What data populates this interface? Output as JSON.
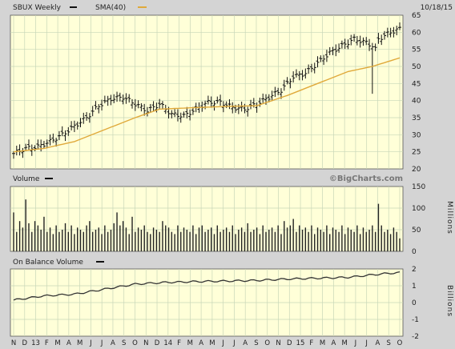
{
  "header": {
    "date": "10/18/15"
  },
  "chart_data": [
    {
      "type": "ohlc",
      "panel": "price",
      "title": "SBUX Weekly",
      "overlay_label": "SMA(40)",
      "colors": {
        "price": "#111111",
        "sma": "#e0a93a",
        "bg": "#ffffd8",
        "grid": "#c8d6b8"
      },
      "ylim": [
        20,
        65
      ],
      "yticks": [
        20,
        25,
        30,
        35,
        40,
        45,
        50,
        55,
        60,
        65
      ],
      "x_labels": [
        "N",
        "D",
        "13",
        "F",
        "M",
        "A",
        "M",
        "J",
        "J",
        "A",
        "S",
        "O",
        "N",
        "D",
        "14",
        "F",
        "M",
        "A",
        "M",
        "J",
        "J",
        "A",
        "S",
        "O",
        "N",
        "D",
        "15",
        "F",
        "M",
        "A",
        "M",
        "J",
        "J",
        "A",
        "S",
        "O"
      ],
      "close_anchors": [
        [
          0,
          24.5
        ],
        [
          4,
          26
        ],
        [
          8,
          26.5
        ],
        [
          12,
          28
        ],
        [
          16,
          30
        ],
        [
          20,
          32.5
        ],
        [
          24,
          35
        ],
        [
          28,
          38.5
        ],
        [
          32,
          40.5
        ],
        [
          36,
          41
        ],
        [
          40,
          39
        ],
        [
          44,
          37
        ],
        [
          48,
          39
        ],
        [
          52,
          36
        ],
        [
          56,
          35.5
        ],
        [
          60,
          37.5
        ],
        [
          64,
          39.5
        ],
        [
          68,
          39.5
        ],
        [
          72,
          38
        ],
        [
          76,
          37.5
        ],
        [
          80,
          39
        ],
        [
          84,
          41
        ],
        [
          88,
          43
        ],
        [
          92,
          47
        ],
        [
          96,
          48
        ],
        [
          100,
          51
        ],
        [
          104,
          54
        ],
        [
          108,
          56
        ],
        [
          112,
          58
        ],
        [
          116,
          57
        ],
        [
          118,
          56
        ],
        [
          119,
          55
        ],
        [
          120,
          58
        ],
        [
          124,
          60
        ],
        [
          127,
          61
        ]
      ],
      "sma_anchors": [
        [
          0,
          25
        ],
        [
          10,
          26
        ],
        [
          20,
          28
        ],
        [
          30,
          31.5
        ],
        [
          40,
          35
        ],
        [
          48,
          37.5
        ],
        [
          56,
          37.8
        ],
        [
          70,
          38.3
        ],
        [
          80,
          38.5
        ],
        [
          90,
          41.5
        ],
        [
          100,
          45
        ],
        [
          110,
          48.5
        ],
        [
          118,
          50
        ],
        [
          127,
          52.5
        ]
      ],
      "spike_low": {
        "week": 118,
        "value": 42
      }
    },
    {
      "type": "bar",
      "panel": "volume",
      "title": "Volume",
      "watermark": "©BigCharts.com",
      "unit_label": "Millions",
      "ylim": [
        0,
        150
      ],
      "yticks": [
        0,
        50,
        100,
        150
      ],
      "values": [
        90,
        45,
        70,
        55,
        120,
        65,
        45,
        70,
        60,
        50,
        80,
        45,
        55,
        40,
        60,
        45,
        50,
        65,
        45,
        60,
        40,
        55,
        50,
        45,
        60,
        70,
        45,
        50,
        55,
        40,
        60,
        45,
        50,
        65,
        90,
        60,
        70,
        55,
        40,
        80,
        45,
        55,
        50,
        60,
        45,
        40,
        55,
        50,
        45,
        70,
        60,
        55,
        45,
        40,
        60,
        45,
        55,
        50,
        45,
        60,
        40,
        55,
        60,
        45,
        50,
        55,
        40,
        60,
        45,
        50,
        55,
        45,
        60,
        40,
        50,
        55,
        45,
        65,
        45,
        50,
        55,
        40,
        60,
        45,
        50,
        55,
        45,
        60,
        40,
        70,
        55,
        60,
        75,
        45,
        60,
        50,
        55,
        45,
        60,
        40,
        55,
        50,
        45,
        60,
        40,
        55,
        50,
        45,
        60,
        40,
        55,
        50,
        45,
        60,
        40,
        55,
        45,
        50,
        60,
        45,
        110,
        60,
        45,
        50,
        40,
        55,
        45,
        30
      ]
    },
    {
      "type": "line",
      "panel": "obv",
      "title": "On Balance Volume",
      "unit_label": "Billions",
      "ylim": [
        -2,
        2
      ],
      "yticks": [
        -2,
        -1,
        0,
        1,
        2
      ],
      "anchors": [
        [
          0,
          0.15
        ],
        [
          10,
          0.4
        ],
        [
          20,
          0.5
        ],
        [
          30,
          0.8
        ],
        [
          40,
          1.1
        ],
        [
          50,
          1.2
        ],
        [
          60,
          1.25
        ],
        [
          70,
          1.28
        ],
        [
          80,
          1.32
        ],
        [
          90,
          1.4
        ],
        [
          100,
          1.45
        ],
        [
          110,
          1.5
        ],
        [
          118,
          1.65
        ],
        [
          122,
          1.72
        ],
        [
          127,
          1.78
        ]
      ]
    }
  ]
}
